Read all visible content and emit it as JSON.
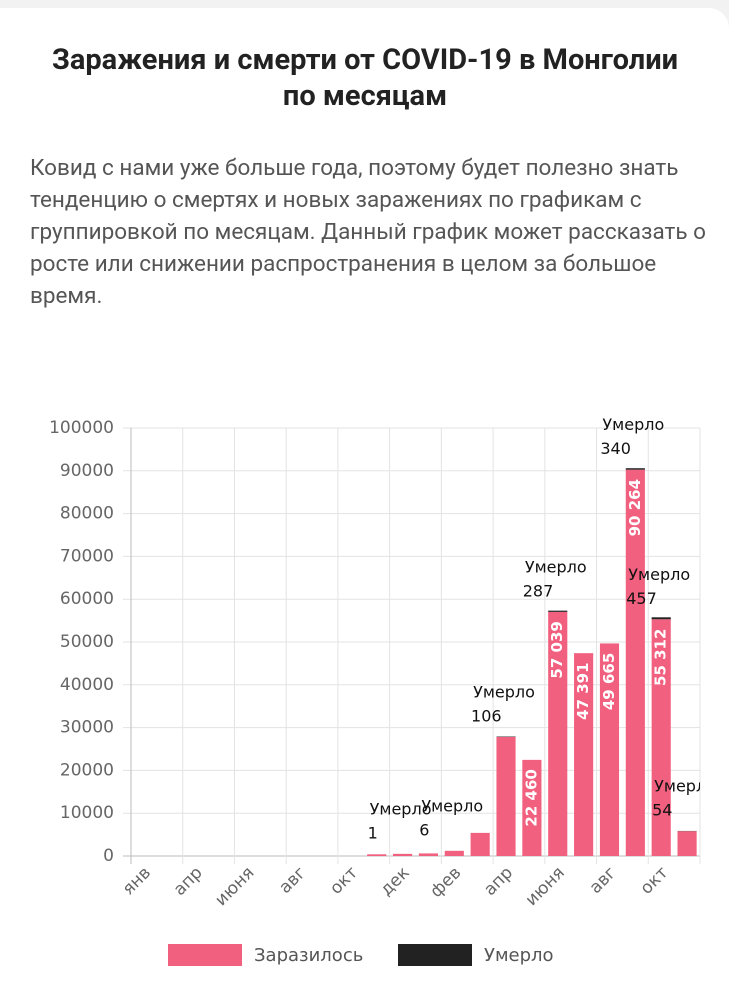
{
  "header": {
    "title": "Заражения и смерти от COVID-19 в Монголии по месяцам",
    "description": "Ковид с нами уже больше года, поэтому будет полезно знать тенденцию о смертях и новых заражениях по графикам с группировкой по месяцам. Данный график может рассказать о росте или снижении распространения в целом за большое время."
  },
  "chart_data": {
    "type": "bar",
    "categories": [
      "янв",
      null,
      "апр",
      null,
      "июня",
      null,
      "авг",
      null,
      "окт",
      null,
      "дек",
      null,
      "фев",
      null,
      "апр",
      null,
      "июня",
      null,
      "авг",
      null,
      "окт",
      null
    ],
    "series": [
      {
        "name": "Заразилось",
        "color": "#f2607f",
        "values": [
          0,
          0,
          0,
          0,
          0,
          0,
          0,
          0,
          0,
          400,
          500,
          600,
          1200,
          5400,
          27800,
          22460,
          57039,
          47391,
          49665,
          90264,
          55312,
          5800
        ],
        "value_labels": [
          null,
          null,
          null,
          null,
          null,
          null,
          null,
          null,
          null,
          null,
          null,
          null,
          null,
          null,
          null,
          "22 460",
          "57 039",
          "47 391",
          "49 665",
          "90 264",
          "55 312",
          null
        ]
      },
      {
        "name": "Умерло",
        "color": "#222222",
        "values": [
          null,
          null,
          null,
          null,
          null,
          null,
          null,
          null,
          null,
          null,
          1,
          null,
          6,
          null,
          106,
          null,
          287,
          null,
          null,
          340,
          457,
          54
        ]
      }
    ],
    "ylim": [
      0,
      100000
    ],
    "yticks": [
      0,
      10000,
      20000,
      30000,
      40000,
      50000,
      60000,
      70000,
      80000,
      90000,
      100000
    ],
    "grid": true
  }
}
